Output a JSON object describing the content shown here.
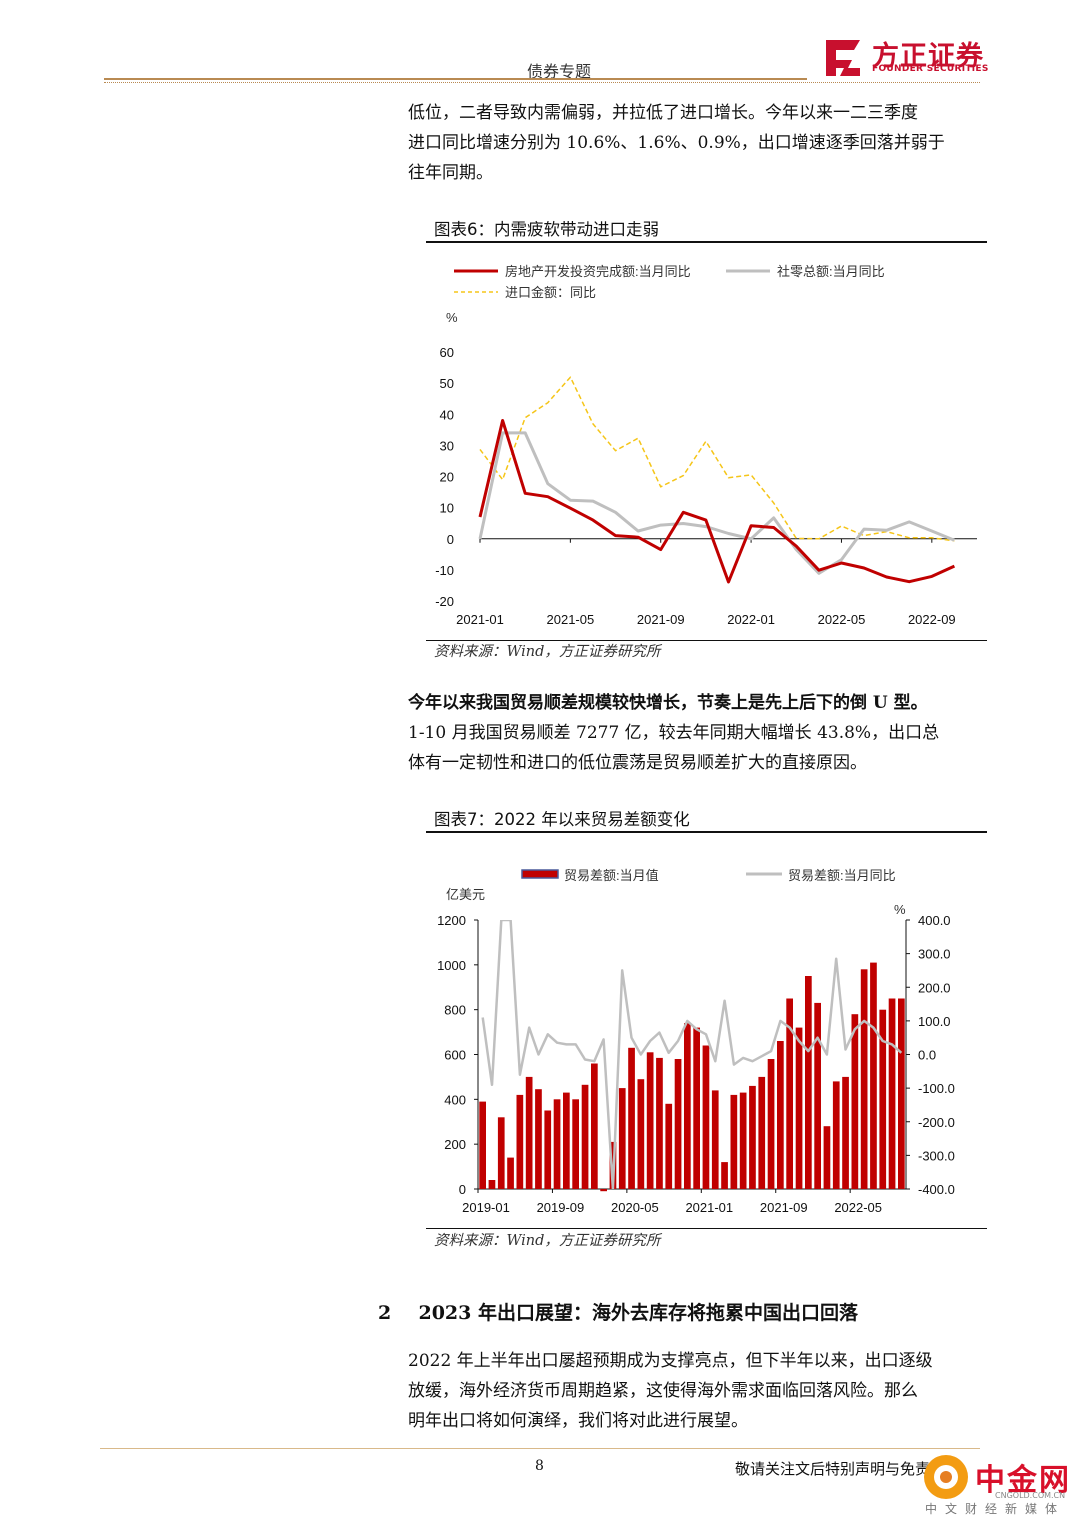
{
  "header": {
    "title": "债券专题",
    "logo_cn": "方正证券",
    "logo_en": "FOUNDER SECURITIES"
  },
  "intro_lines": [
    "低位，二者导致内需偏弱，并拉低了进口增长。今年以来一二三季度",
    "进口同比增速分别为 10.6%、1.6%、0.9%，出口增速逐季回落并弱于",
    "往年同期。"
  ],
  "figure6": {
    "title": "图表6：内需疲软带动进口走弱",
    "source": "资料来源：Wind，方正证券研究所"
  },
  "para2": {
    "bold": "今年以来我国贸易顺差规模较快增长，节奏上是先上后下的倒 U 型。",
    "lines": [
      "1-10 月我国贸易顺差 7277 亿，较去年同期大幅增长 43.8%，出口总",
      "体有一定韧性和进口的低位震荡是贸易顺差扩大的直接原因。"
    ]
  },
  "figure7": {
    "title": "图表7：2022 年以来贸易差额变化",
    "source": "资料来源：Wind，方正证券研究所"
  },
  "section": {
    "number": "2",
    "title": "2023 年出口展望：海外去库存将拖累中国出口回落"
  },
  "para3": {
    "lines": [
      "2022 年上半年出口屡超预期成为支撑亮点，但下半年以来，出口逐级",
      "放缓，海外经济货币周期趋紧，这使得海外需求面临回落风险。那么",
      "明年出口将如何演绎，我们将对此进行展望。"
    ]
  },
  "footer": {
    "page": "8",
    "note": "敬请关注文后特别声明与免责条款",
    "watermark": "中金网",
    "watermark_sub": "中文财经新媒体",
    "watermark_url": "CNGOLD.COM.CN"
  },
  "chart_data": [
    {
      "type": "line",
      "ylabel": "%",
      "ylim": [
        -20,
        60
      ],
      "yticks": [
        60,
        50,
        40,
        30,
        20,
        10,
        0,
        -10,
        -20
      ],
      "x_tick_labels": [
        "2021-01",
        "2021-05",
        "2021-09",
        "2022-01",
        "2022-05",
        "2022-09"
      ],
      "x": [
        "2021-01",
        "2021-02",
        "2021-03",
        "2021-04",
        "2021-05",
        "2021-06",
        "2021-07",
        "2021-08",
        "2021-09",
        "2021-10",
        "2021-11",
        "2021-12",
        "2022-01",
        "2022-02",
        "2022-03",
        "2022-04",
        "2022-05",
        "2022-06",
        "2022-07",
        "2022-08",
        "2022-09",
        "2022-10",
        "2022-11"
      ],
      "legend": "top",
      "series": [
        {
          "name": "房地产开发投资完成额:当月同比",
          "color": "#c00000",
          "style": "solid",
          "values": [
            7,
            38,
            14.6,
            13.5,
            9.8,
            6,
            1,
            0.5,
            -3.5,
            8.5,
            6,
            -13.9,
            4.2,
            3.6,
            -2.4,
            -10.1,
            -7.8,
            -9.4,
            -12.3,
            -13.8,
            -12.1,
            -8.8,
            null
          ]
        },
        {
          "name": "社零总额:当月同比",
          "color": "#bfbfbf",
          "style": "solid",
          "values": [
            0,
            34,
            34,
            17.7,
            12.4,
            12.1,
            8.5,
            2.5,
            4.4,
            4.9,
            3.9,
            1.7,
            0,
            6.7,
            -3.5,
            -11.1,
            -6.7,
            3.1,
            2.7,
            5.4,
            2.5,
            -0.5,
            null
          ]
        },
        {
          "name": "进口金额：同比",
          "color": "#f5c518",
          "style": "dashed",
          "values": [
            28.7,
            19,
            38.9,
            43.7,
            51.9,
            36.9,
            28.3,
            32.3,
            16.7,
            20.3,
            31.3,
            19.6,
            20.5,
            11.5,
            0.1,
            0,
            4.1,
            1,
            2.3,
            0.3,
            0.3,
            -0.7,
            null
          ]
        }
      ]
    },
    {
      "type": "bar",
      "ylabel_left": "亿美元",
      "ylabel_right": "%",
      "ylim_left": [
        0,
        1200
      ],
      "ylim_right": [
        -400,
        400
      ],
      "yticks_left": [
        1200,
        1000,
        800,
        600,
        400,
        200,
        0
      ],
      "yticks_right": [
        "400.0",
        "300.0",
        "200.0",
        "100.0",
        "0.0",
        "-100.0",
        "-200.0",
        "-300.0",
        "-400.0"
      ],
      "x_tick_labels": [
        "2019-01",
        "2019-09",
        "2020-05",
        "2021-01",
        "2021-09",
        "2022-05"
      ],
      "legend": "top",
      "series": [
        {
          "name": "贸易差额:当月值",
          "color": "#c00000",
          "axis": "left",
          "values": [
            390,
            40,
            320,
            140,
            420,
            500,
            445,
            350,
            400,
            430,
            400,
            465,
            560,
            -10,
            210,
            450,
            630,
            490,
            610,
            585,
            380,
            580,
            740,
            720,
            640,
            440,
            120,
            420,
            430,
            460,
            500,
            580,
            660,
            850,
            720,
            950,
            830,
            280,
            480,
            500,
            780,
            980,
            1010,
            800,
            850,
            850
          ]
        },
        {
          "name": "贸易差额:当月同比",
          "color": "#bfbfbf",
          "axis": "right",
          "values": [
            110,
            -90,
            400,
            400,
            -60,
            80,
            0,
            60,
            35,
            30,
            30,
            -15,
            -20,
            45,
            -400,
            250,
            50,
            0,
            40,
            65,
            5,
            40,
            100,
            75,
            60,
            -20,
            160,
            -30,
            -10,
            -20,
            -5,
            10,
            100,
            80,
            40,
            10,
            50,
            0,
            285,
            15,
            75,
            100,
            80,
            40,
            30,
            5
          ]
        }
      ]
    }
  ]
}
